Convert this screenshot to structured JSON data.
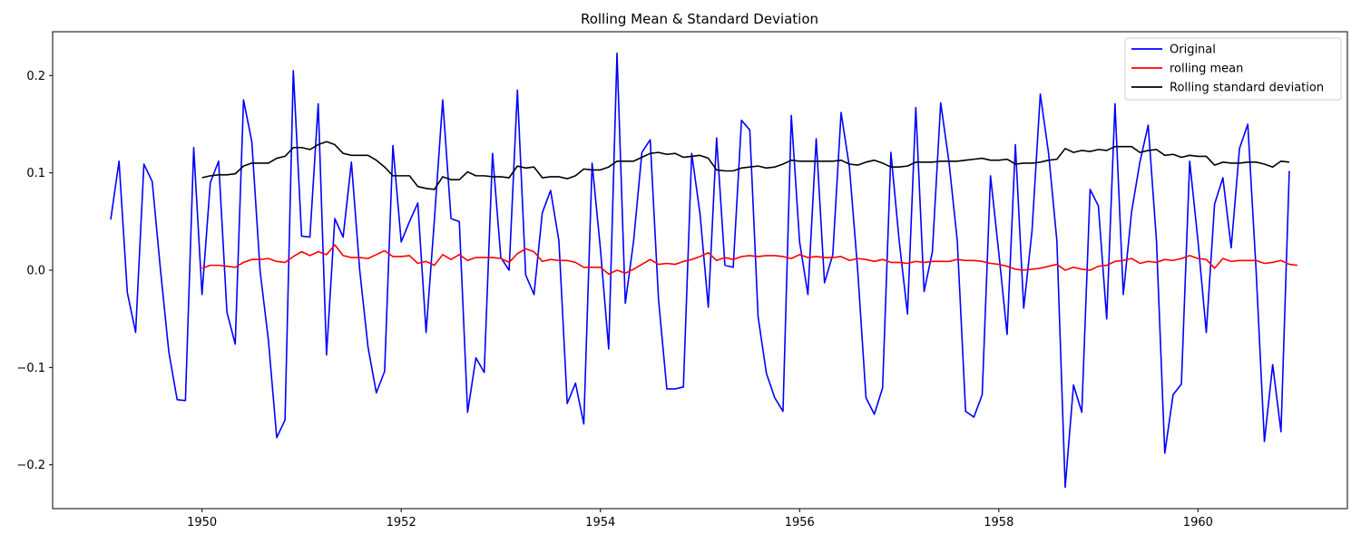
{
  "chart_data": {
    "type": "line",
    "title": "Rolling Mean & Standard Deviation",
    "xlabel": "",
    "ylabel": "",
    "xlim": [
      1948.5,
      1961.5
    ],
    "ylim": [
      -0.245,
      0.245
    ],
    "xticks": [
      1950,
      1952,
      1954,
      1956,
      1958,
      1960
    ],
    "yticks": [
      -0.2,
      -0.1,
      0.0,
      0.1,
      0.2
    ],
    "ytick_labels": [
      "−0.2",
      "−0.1",
      "0.0",
      "0.1",
      "0.2"
    ],
    "grid": false,
    "legend": {
      "placement": "top-right"
    },
    "x_start": 1949.0833,
    "x_step": 0.0833333,
    "series": [
      {
        "name": "Original",
        "color": "#0000ff",
        "offset": 0,
        "values": [
          0.052,
          0.112,
          -0.023,
          -0.064,
          0.109,
          0.091,
          0.0,
          -0.084,
          -0.133,
          -0.134,
          0.126,
          -0.025,
          0.09,
          0.112,
          -0.043,
          -0.076,
          0.175,
          0.132,
          -0.001,
          -0.072,
          -0.172,
          -0.154,
          0.205,
          0.035,
          0.034,
          0.171,
          -0.087,
          0.053,
          0.034,
          0.111,
          0.0,
          -0.079,
          -0.126,
          -0.104,
          0.128,
          0.029,
          0.05,
          0.069,
          -0.064,
          0.052,
          0.175,
          0.053,
          0.05,
          -0.146,
          -0.09,
          -0.105,
          0.12,
          0.013,
          0.0,
          0.185,
          -0.005,
          -0.025,
          0.059,
          0.082,
          0.03,
          -0.137,
          -0.116,
          -0.158,
          0.11,
          0.022,
          -0.081,
          0.223,
          -0.034,
          0.03,
          0.121,
          0.134,
          -0.03,
          -0.122,
          -0.122,
          -0.12,
          0.12,
          0.058,
          -0.038,
          0.136,
          0.005,
          0.003,
          0.154,
          0.144,
          -0.048,
          -0.106,
          -0.131,
          -0.145,
          0.159,
          0.029,
          -0.025,
          0.135,
          -0.013,
          0.016,
          0.162,
          0.106,
          0.0,
          -0.131,
          -0.148,
          -0.121,
          0.121,
          0.03,
          -0.045,
          0.167,
          -0.022,
          0.019,
          0.172,
          0.111,
          0.03,
          -0.145,
          -0.151,
          -0.128,
          0.097,
          0.018,
          -0.066,
          0.129,
          -0.039,
          0.04,
          0.181,
          0.12,
          0.03,
          -0.223,
          -0.118,
          -0.146,
          0.083,
          0.066,
          -0.05,
          0.171,
          -0.025,
          0.06,
          0.111,
          0.149,
          0.03,
          -0.188,
          -0.128,
          -0.117,
          0.112,
          0.03,
          -0.064,
          0.068,
          0.095,
          0.023,
          0.125,
          0.15,
          0.0,
          -0.176,
          -0.097,
          -0.166,
          0.102
        ]
      },
      {
        "name": "rolling mean",
        "color": "#ff0000",
        "offset": 11,
        "values": [
          0.002,
          0.005,
          0.005,
          0.004,
          0.003,
          0.008,
          0.011,
          0.011,
          0.012,
          0.009,
          0.008,
          0.014,
          0.019,
          0.015,
          0.019,
          0.016,
          0.026,
          0.015,
          0.013,
          0.013,
          0.012,
          0.016,
          0.02,
          0.014,
          0.014,
          0.015,
          0.007,
          0.009,
          0.005,
          0.016,
          0.011,
          0.016,
          0.01,
          0.013,
          0.013,
          0.013,
          0.012,
          0.008,
          0.017,
          0.022,
          0.019,
          0.009,
          0.011,
          0.01,
          0.01,
          0.008,
          0.003,
          0.003,
          0.003,
          -0.004,
          0.0,
          -0.003,
          0.001,
          0.006,
          0.011,
          0.006,
          0.007,
          0.006,
          0.009,
          0.011,
          0.014,
          0.018,
          0.01,
          0.013,
          0.011,
          0.014,
          0.015,
          0.014,
          0.015,
          0.015,
          0.014,
          0.012,
          0.016,
          0.013,
          0.014,
          0.013,
          0.013,
          0.014,
          0.01,
          0.012,
          0.011,
          0.009,
          0.011,
          0.008,
          0.008,
          0.007,
          0.009,
          0.008,
          0.009,
          0.009,
          0.009,
          0.011,
          0.01,
          0.01,
          0.009,
          0.007,
          0.006,
          0.004,
          0.001,
          0.0,
          0.001,
          0.002,
          0.004,
          0.006,
          0.0,
          0.003,
          0.001,
          0.0,
          0.004,
          0.005,
          0.009,
          0.01,
          0.012,
          0.007,
          0.009,
          0.008,
          0.011,
          0.01,
          0.012,
          0.015,
          0.012,
          0.011,
          0.002,
          0.012,
          0.009,
          0.01,
          0.01,
          0.01,
          0.007,
          0.008,
          0.01,
          0.006,
          0.005
        ]
      },
      {
        "name": "Rolling standard deviation",
        "color": "#000000",
        "offset": 11,
        "values": [
          0.095,
          0.097,
          0.098,
          0.098,
          0.099,
          0.107,
          0.11,
          0.11,
          0.11,
          0.115,
          0.117,
          0.126,
          0.126,
          0.124,
          0.129,
          0.132,
          0.129,
          0.12,
          0.118,
          0.118,
          0.118,
          0.113,
          0.106,
          0.097,
          0.097,
          0.097,
          0.086,
          0.084,
          0.083,
          0.096,
          0.093,
          0.093,
          0.101,
          0.097,
          0.097,
          0.096,
          0.096,
          0.095,
          0.107,
          0.105,
          0.106,
          0.095,
          0.096,
          0.096,
          0.094,
          0.097,
          0.104,
          0.103,
          0.103,
          0.106,
          0.112,
          0.112,
          0.112,
          0.116,
          0.12,
          0.121,
          0.119,
          0.12,
          0.116,
          0.117,
          0.118,
          0.115,
          0.103,
          0.102,
          0.102,
          0.105,
          0.106,
          0.107,
          0.105,
          0.106,
          0.109,
          0.113,
          0.112,
          0.112,
          0.112,
          0.112,
          0.112,
          0.113,
          0.109,
          0.108,
          0.111,
          0.113,
          0.11,
          0.106,
          0.106,
          0.107,
          0.111,
          0.111,
          0.111,
          0.112,
          0.112,
          0.112,
          0.113,
          0.114,
          0.115,
          0.113,
          0.113,
          0.114,
          0.109,
          0.11,
          0.11,
          0.111,
          0.113,
          0.114,
          0.125,
          0.121,
          0.123,
          0.122,
          0.124,
          0.123,
          0.127,
          0.127,
          0.127,
          0.121,
          0.123,
          0.124,
          0.118,
          0.119,
          0.116,
          0.118,
          0.117,
          0.117,
          0.108,
          0.111,
          0.11,
          0.11,
          0.111,
          0.111,
          0.109,
          0.106,
          0.112,
          0.111
        ]
      }
    ]
  }
}
